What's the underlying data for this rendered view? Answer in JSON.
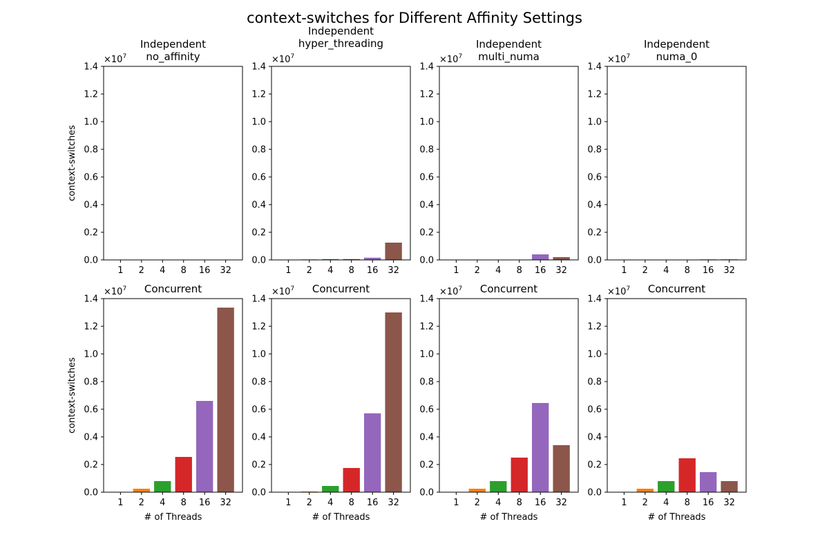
{
  "figure": {
    "suptitle": "context-switches for Different Affinity Settings"
  },
  "chart_data": [
    {
      "type": "bar",
      "title_lines": [
        "Independent",
        "no_affinity"
      ],
      "categories": [
        "1",
        "2",
        "4",
        "8",
        "16",
        "32"
      ],
      "values": [
        0,
        0,
        0,
        0,
        0,
        0
      ],
      "ylabel": "context-switches",
      "xlabel": "",
      "ylim": [
        0,
        14000000
      ],
      "yticks": [
        "0.0",
        "0.2",
        "0.4",
        "0.6",
        "0.8",
        "1.0",
        "1.2",
        "1.4"
      ],
      "offset_text": "×10",
      "offset_exp": "7",
      "colors": [
        "#1f77b4",
        "#ff7f0e",
        "#2ca02c",
        "#d62728",
        "#9467bd",
        "#8c564b"
      ]
    },
    {
      "type": "bar",
      "title_lines": [
        "Independent",
        "hyper_threading"
      ],
      "categories": [
        "1",
        "2",
        "4",
        "8",
        "16",
        "32"
      ],
      "values": [
        0,
        40000,
        60000,
        60000,
        160000,
        1250000
      ],
      "ylabel": "",
      "xlabel": "",
      "ylim": [
        0,
        14000000
      ],
      "yticks": [
        "0.0",
        "0.2",
        "0.4",
        "0.6",
        "0.8",
        "1.0",
        "1.2",
        "1.4"
      ],
      "offset_text": "×10",
      "offset_exp": "7",
      "colors": [
        "#1f77b4",
        "#ff7f0e",
        "#2ca02c",
        "#d62728",
        "#9467bd",
        "#8c564b"
      ]
    },
    {
      "type": "bar",
      "title_lines": [
        "Independent",
        "multi_numa"
      ],
      "categories": [
        "1",
        "2",
        "4",
        "8",
        "16",
        "32"
      ],
      "values": [
        0,
        0,
        0,
        0,
        400000,
        200000
      ],
      "ylabel": "",
      "xlabel": "",
      "ylim": [
        0,
        14000000
      ],
      "yticks": [
        "0.0",
        "0.2",
        "0.4",
        "0.6",
        "0.8",
        "1.0",
        "1.2",
        "1.4"
      ],
      "offset_text": "×10",
      "offset_exp": "7",
      "colors": [
        "#1f77b4",
        "#ff7f0e",
        "#2ca02c",
        "#d62728",
        "#9467bd",
        "#8c564b"
      ]
    },
    {
      "type": "bar",
      "title_lines": [
        "Independent",
        "numa_0"
      ],
      "categories": [
        "1",
        "2",
        "4",
        "8",
        "16",
        "32"
      ],
      "values": [
        0,
        0,
        0,
        0,
        40000,
        40000
      ],
      "ylabel": "",
      "xlabel": "",
      "ylim": [
        0,
        14000000
      ],
      "yticks": [
        "0.0",
        "0.2",
        "0.4",
        "0.6",
        "0.8",
        "1.0",
        "1.2",
        "1.4"
      ],
      "offset_text": "×10",
      "offset_exp": "7",
      "colors": [
        "#1f77b4",
        "#ff7f0e",
        "#2ca02c",
        "#d62728",
        "#9467bd",
        "#8c564b"
      ]
    },
    {
      "type": "bar",
      "title_lines": [
        "Concurrent"
      ],
      "categories": [
        "1",
        "2",
        "4",
        "8",
        "16",
        "32"
      ],
      "values": [
        0,
        250000,
        800000,
        2550000,
        6600000,
        13350000
      ],
      "ylabel": "context-switches",
      "xlabel": "# of Threads",
      "ylim": [
        0,
        14000000
      ],
      "yticks": [
        "0.0",
        "0.2",
        "0.4",
        "0.6",
        "0.8",
        "1.0",
        "1.2",
        "1.4"
      ],
      "offset_text": "×10",
      "offset_exp": "7",
      "colors": [
        "#1f77b4",
        "#ff7f0e",
        "#2ca02c",
        "#d62728",
        "#9467bd",
        "#8c564b"
      ]
    },
    {
      "type": "bar",
      "title_lines": [
        "Concurrent"
      ],
      "categories": [
        "1",
        "2",
        "4",
        "8",
        "16",
        "32"
      ],
      "values": [
        0,
        50000,
        450000,
        1750000,
        5700000,
        13000000
      ],
      "ylabel": "",
      "xlabel": "# of Threads",
      "ylim": [
        0,
        14000000
      ],
      "yticks": [
        "0.0",
        "0.2",
        "0.4",
        "0.6",
        "0.8",
        "1.0",
        "1.2",
        "1.4"
      ],
      "offset_text": "×10",
      "offset_exp": "7",
      "colors": [
        "#1f77b4",
        "#ff7f0e",
        "#2ca02c",
        "#d62728",
        "#9467bd",
        "#8c564b"
      ]
    },
    {
      "type": "bar",
      "title_lines": [
        "Concurrent"
      ],
      "categories": [
        "1",
        "2",
        "4",
        "8",
        "16",
        "32"
      ],
      "values": [
        0,
        250000,
        800000,
        2500000,
        6450000,
        3400000
      ],
      "ylabel": "",
      "xlabel": "# of Threads",
      "ylim": [
        0,
        14000000
      ],
      "yticks": [
        "0.0",
        "0.2",
        "0.4",
        "0.6",
        "0.8",
        "1.0",
        "1.2",
        "1.4"
      ],
      "offset_text": "×10",
      "offset_exp": "7",
      "colors": [
        "#1f77b4",
        "#ff7f0e",
        "#2ca02c",
        "#d62728",
        "#9467bd",
        "#8c564b"
      ]
    },
    {
      "type": "bar",
      "title_lines": [
        "Concurrent"
      ],
      "categories": [
        "1",
        "2",
        "4",
        "8",
        "16",
        "32"
      ],
      "values": [
        0,
        250000,
        800000,
        2450000,
        1450000,
        800000
      ],
      "ylabel": "",
      "xlabel": "# of Threads",
      "ylim": [
        0,
        14000000
      ],
      "yticks": [
        "0.0",
        "0.2",
        "0.4",
        "0.6",
        "0.8",
        "1.0",
        "1.2",
        "1.4"
      ],
      "offset_text": "×10",
      "offset_exp": "7",
      "colors": [
        "#1f77b4",
        "#ff7f0e",
        "#2ca02c",
        "#d62728",
        "#9467bd",
        "#8c564b"
      ]
    }
  ]
}
